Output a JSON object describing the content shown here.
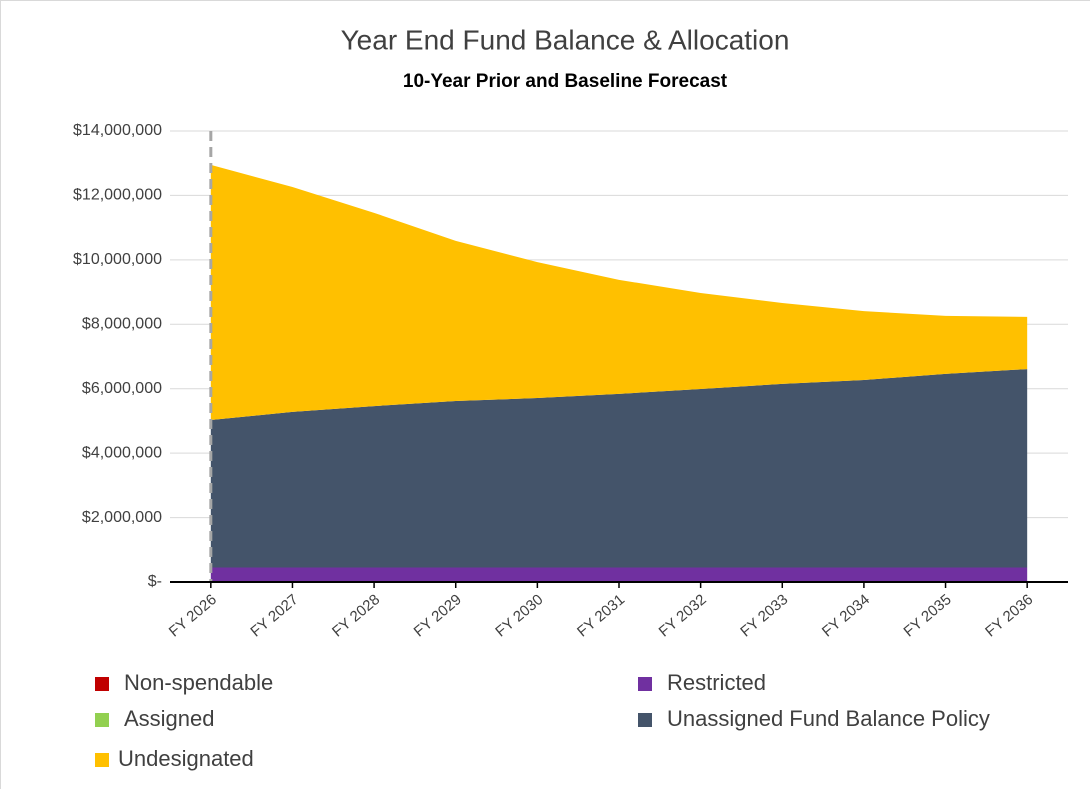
{
  "chart_data": {
    "type": "stacked_area",
    "title": "Year End Fund Balance & Allocation",
    "subtitle": "10-Year Prior and Baseline Forecast",
    "categories": [
      "FY 2026",
      "FY 2027",
      "FY 2028",
      "FY 2029",
      "FY 2030",
      "FY 2031",
      "FY 2032",
      "FY 2033",
      "FY 2034",
      "FY 2035",
      "FY 2036"
    ],
    "series": [
      {
        "name": "Non-spendable",
        "color": "#c00000",
        "values": [
          0,
          0,
          0,
          0,
          0,
          0,
          0,
          0,
          0,
          0,
          0
        ]
      },
      {
        "name": "Restricted",
        "color": "#7030a0",
        "values": [
          450000,
          450000,
          450000,
          450000,
          450000,
          450000,
          450000,
          450000,
          450000,
          450000,
          450000
        ]
      },
      {
        "name": "Assigned",
        "color": "#92d050",
        "values": [
          0,
          0,
          0,
          0,
          0,
          0,
          0,
          0,
          0,
          0,
          0
        ]
      },
      {
        "name": "Unassigned Fund Balance Policy",
        "color": "#44546a",
        "values": [
          4580000,
          4830000,
          5010000,
          5170000,
          5260000,
          5390000,
          5540000,
          5700000,
          5820000,
          6010000,
          6160000
        ]
      },
      {
        "name": "Undesignated",
        "color": "#ffc000",
        "values": [
          7920000,
          6980000,
          6000000,
          4970000,
          4220000,
          3540000,
          2980000,
          2510000,
          2140000,
          1800000,
          1620000
        ]
      }
    ],
    "ylim": [
      0,
      14000000
    ],
    "yticks": [
      {
        "value": 0,
        "label": "$-"
      },
      {
        "value": 2000000,
        "label": "$2,000,000"
      },
      {
        "value": 4000000,
        "label": "$4,000,000"
      },
      {
        "value": 6000000,
        "label": "$6,000,000"
      },
      {
        "value": 8000000,
        "label": "$8,000,000"
      },
      {
        "value": 10000000,
        "label": "$10,000,000"
      },
      {
        "value": 12000000,
        "label": "$12,000,000"
      },
      {
        "value": 14000000,
        "label": "$14,000,000"
      }
    ],
    "grid": true
  }
}
